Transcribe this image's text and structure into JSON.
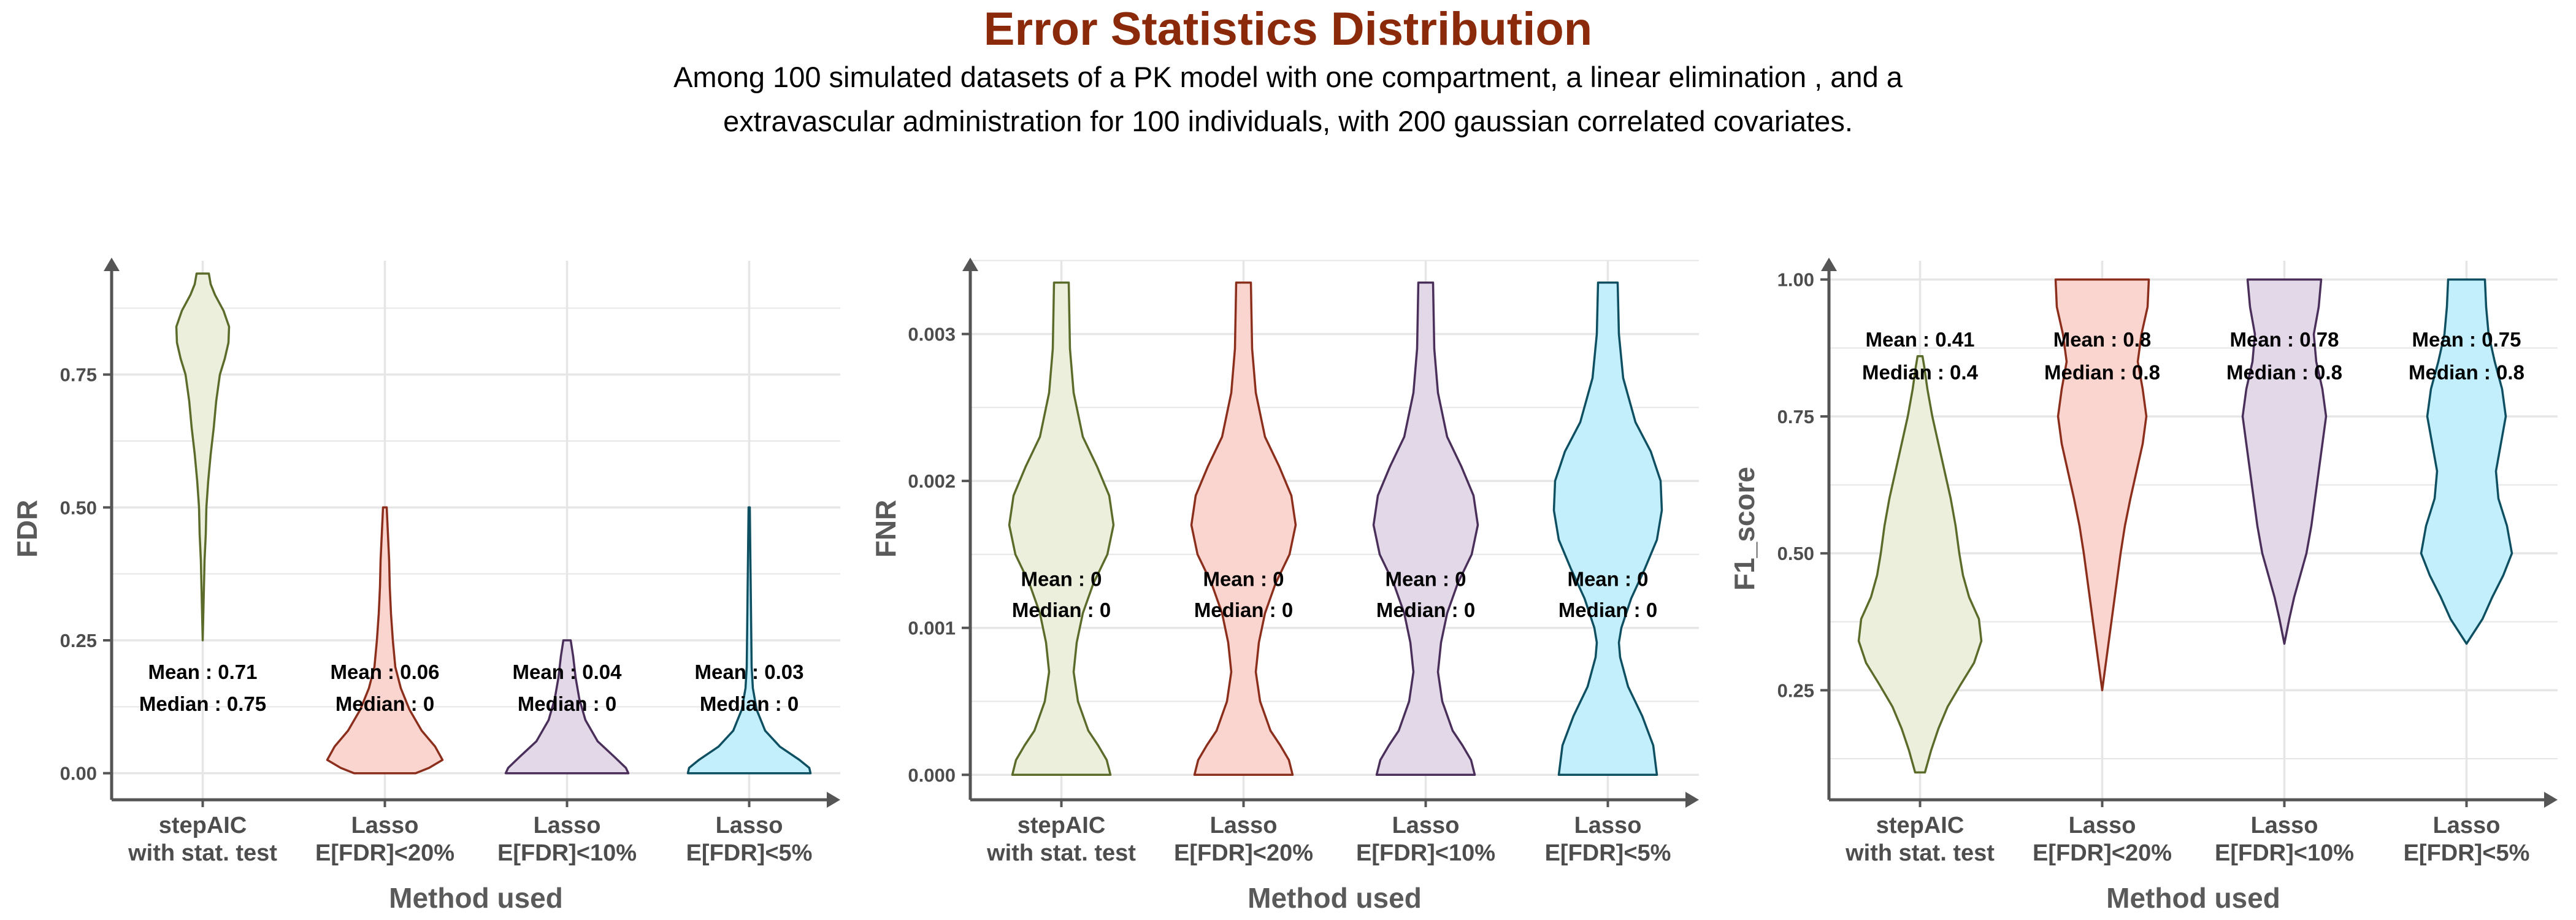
{
  "title": "Error Statistics Distribution",
  "subtitle_lines": [
    "Among 100 simulated datasets of a PK model with one compartment, a linear elimination , and a",
    "extravascular administration for 100 individuals, with 200 gaussian correlated covariates."
  ],
  "colors": {
    "title": "#8B2A0A",
    "fills": [
      "#EBEFDC",
      "#FAD4CE",
      "#E2D8E8",
      "#C2EFFB"
    ],
    "outlines": [
      "#5B6B2A",
      "#8B2E1C",
      "#4A2F5A",
      "#0E4F61"
    ],
    "grid": "#E6E6E6",
    "axis": "#555555"
  },
  "chart_data": [
    {
      "type": "violin",
      "title": "",
      "xlabel": "Method used",
      "ylabel": "FDR",
      "categories": [
        [
          "stepAIC",
          "with stat. test"
        ],
        [
          "Lasso",
          "E[FDR]<20%"
        ],
        [
          "Lasso",
          "E[FDR]<10%"
        ],
        [
          "Lasso",
          "E[FDR]<5%"
        ]
      ],
      "ylim": [
        -0.05,
        0.97
      ],
      "yticks": [
        0.0,
        0.25,
        0.5,
        0.75
      ],
      "ytick_labels": [
        "0.00",
        "0.25",
        "0.50",
        "0.75"
      ],
      "grid": true,
      "stats_y": [
        0.19,
        0.13
      ],
      "series": [
        {
          "category": "stepAIC with stat. test",
          "mean_label": "Mean : 0.71",
          "median_label": "Median : 0.75",
          "density": [
            [
              0.25,
              0.0
            ],
            [
              0.3,
              0.01
            ],
            [
              0.35,
              0.02
            ],
            [
              0.4,
              0.03
            ],
            [
              0.45,
              0.05
            ],
            [
              0.5,
              0.06
            ],
            [
              0.55,
              0.09
            ],
            [
              0.6,
              0.13
            ],
            [
              0.65,
              0.18
            ],
            [
              0.7,
              0.22
            ],
            [
              0.75,
              0.28
            ],
            [
              0.78,
              0.36
            ],
            [
              0.81,
              0.42
            ],
            [
              0.84,
              0.43
            ],
            [
              0.87,
              0.34
            ],
            [
              0.9,
              0.2
            ],
            [
              0.92,
              0.13
            ],
            [
              0.94,
              0.1
            ]
          ]
        },
        {
          "category": "Lasso E[FDR]<20%",
          "mean_label": "Mean : 0.06",
          "median_label": "Median : 0",
          "density": [
            [
              0.0,
              0.5
            ],
            [
              0.01,
              0.72
            ],
            [
              0.025,
              0.94
            ],
            [
              0.05,
              0.82
            ],
            [
              0.08,
              0.6
            ],
            [
              0.12,
              0.4
            ],
            [
              0.16,
              0.26
            ],
            [
              0.2,
              0.17
            ],
            [
              0.25,
              0.13
            ],
            [
              0.3,
              0.1
            ],
            [
              0.35,
              0.08
            ],
            [
              0.4,
              0.07
            ],
            [
              0.45,
              0.05
            ],
            [
              0.5,
              0.03
            ]
          ]
        },
        {
          "category": "Lasso E[FDR]<10%",
          "mean_label": "Mean : 0.04",
          "median_label": "Median : 0",
          "density": [
            [
              0.0,
              1.0
            ],
            [
              0.01,
              0.96
            ],
            [
              0.03,
              0.78
            ],
            [
              0.06,
              0.5
            ],
            [
              0.1,
              0.3
            ],
            [
              0.14,
              0.2
            ],
            [
              0.18,
              0.14
            ],
            [
              0.22,
              0.1
            ],
            [
              0.25,
              0.06
            ]
          ]
        },
        {
          "category": "Lasso E[FDR]<5%",
          "mean_label": "Mean : 0.03",
          "median_label": "Median : 0",
          "density": [
            [
              0.0,
              1.0
            ],
            [
              0.01,
              0.98
            ],
            [
              0.025,
              0.82
            ],
            [
              0.05,
              0.5
            ],
            [
              0.08,
              0.26
            ],
            [
              0.12,
              0.12
            ],
            [
              0.16,
              0.06
            ],
            [
              0.2,
              0.04
            ],
            [
              0.3,
              0.03
            ],
            [
              0.4,
              0.02
            ],
            [
              0.5,
              0.01
            ]
          ]
        }
      ]
    },
    {
      "type": "violin",
      "title": "",
      "xlabel": "Method used",
      "ylabel": "FNR",
      "categories": [
        [
          "stepAIC",
          "with stat. test"
        ],
        [
          "Lasso",
          "E[FDR]<20%"
        ],
        [
          "Lasso",
          "E[FDR]<10%"
        ],
        [
          "Lasso",
          "E[FDR]<5%"
        ]
      ],
      "ylim": [
        -0.00017,
        0.00352
      ],
      "yticks": [
        0.0,
        0.001,
        0.002,
        0.003
      ],
      "ytick_labels": [
        "0.000",
        "0.001",
        "0.002",
        "0.003"
      ],
      "grid": true,
      "stats_y": [
        0.00133,
        0.00112
      ],
      "series": [
        {
          "category": "stepAIC with stat. test",
          "mean_label": "Mean : 0",
          "median_label": "Median : 0",
          "density": [
            [
              0.0,
              0.8
            ],
            [
              0.0001,
              0.74
            ],
            [
              0.0002,
              0.6
            ],
            [
              0.0003,
              0.44
            ],
            [
              0.0005,
              0.27
            ],
            [
              0.0007,
              0.2
            ],
            [
              0.0009,
              0.25
            ],
            [
              0.0011,
              0.35
            ],
            [
              0.0013,
              0.52
            ],
            [
              0.0015,
              0.75
            ],
            [
              0.0017,
              0.85
            ],
            [
              0.0019,
              0.78
            ],
            [
              0.0021,
              0.58
            ],
            [
              0.0023,
              0.35
            ],
            [
              0.0026,
              0.2
            ],
            [
              0.0029,
              0.14
            ],
            [
              0.00335,
              0.12
            ]
          ]
        },
        {
          "category": "Lasso E[FDR]<20%",
          "mean_label": "Mean : 0",
          "median_label": "Median : 0",
          "density": [
            [
              0.0,
              0.8
            ],
            [
              0.0001,
              0.74
            ],
            [
              0.0002,
              0.6
            ],
            [
              0.0003,
              0.44
            ],
            [
              0.0005,
              0.27
            ],
            [
              0.0007,
              0.2
            ],
            [
              0.0009,
              0.25
            ],
            [
              0.0011,
              0.35
            ],
            [
              0.0013,
              0.52
            ],
            [
              0.0015,
              0.75
            ],
            [
              0.0017,
              0.85
            ],
            [
              0.0019,
              0.78
            ],
            [
              0.0021,
              0.58
            ],
            [
              0.0023,
              0.35
            ],
            [
              0.0026,
              0.2
            ],
            [
              0.0029,
              0.14
            ],
            [
              0.00335,
              0.12
            ]
          ]
        },
        {
          "category": "Lasso E[FDR]<10%",
          "mean_label": "Mean : 0",
          "median_label": "Median : 0",
          "density": [
            [
              0.0,
              0.8
            ],
            [
              0.0001,
              0.74
            ],
            [
              0.0002,
              0.6
            ],
            [
              0.0003,
              0.44
            ],
            [
              0.0005,
              0.27
            ],
            [
              0.0007,
              0.2
            ],
            [
              0.0009,
              0.25
            ],
            [
              0.0011,
              0.35
            ],
            [
              0.0013,
              0.52
            ],
            [
              0.0015,
              0.75
            ],
            [
              0.0017,
              0.85
            ],
            [
              0.0019,
              0.78
            ],
            [
              0.0021,
              0.58
            ],
            [
              0.0023,
              0.35
            ],
            [
              0.0026,
              0.2
            ],
            [
              0.0029,
              0.14
            ],
            [
              0.00335,
              0.12
            ]
          ]
        },
        {
          "category": "Lasso E[FDR]<5%",
          "mean_label": "Mean : 0",
          "median_label": "Median : 0",
          "density": [
            [
              0.0,
              0.8
            ],
            [
              0.0002,
              0.74
            ],
            [
              0.0004,
              0.56
            ],
            [
              0.0006,
              0.33
            ],
            [
              0.0008,
              0.2
            ],
            [
              0.0009,
              0.18
            ],
            [
              0.001,
              0.22
            ],
            [
              0.0012,
              0.38
            ],
            [
              0.0014,
              0.6
            ],
            [
              0.0016,
              0.8
            ],
            [
              0.0018,
              0.88
            ],
            [
              0.002,
              0.86
            ],
            [
              0.0022,
              0.7
            ],
            [
              0.0024,
              0.45
            ],
            [
              0.0027,
              0.25
            ],
            [
              0.003,
              0.18
            ],
            [
              0.00335,
              0.16
            ]
          ]
        }
      ]
    },
    {
      "type": "violin",
      "title": "",
      "xlabel": "Method used",
      "ylabel": "F1_score",
      "categories": [
        [
          "stepAIC",
          "with stat. test"
        ],
        [
          "Lasso",
          "E[FDR]<20%"
        ],
        [
          "Lasso",
          "E[FDR]<10%"
        ],
        [
          "Lasso",
          "E[FDR]<5%"
        ]
      ],
      "ylim": [
        0.05,
        1.04
      ],
      "yticks": [
        0.25,
        0.5,
        0.75,
        1.0
      ],
      "ytick_labels": [
        "0.25",
        "0.50",
        "0.75",
        "1.00"
      ],
      "grid": true,
      "stats_y": [
        0.89,
        0.83
      ],
      "series": [
        {
          "category": "stepAIC with stat. test",
          "mean_label": "Mean : 0.41",
          "median_label": "Median : 0.4",
          "density": [
            [
              0.1,
              0.08
            ],
            [
              0.14,
              0.18
            ],
            [
              0.18,
              0.3
            ],
            [
              0.22,
              0.45
            ],
            [
              0.26,
              0.66
            ],
            [
              0.3,
              0.88
            ],
            [
              0.34,
              1.0
            ],
            [
              0.38,
              0.96
            ],
            [
              0.42,
              0.8
            ],
            [
              0.46,
              0.7
            ],
            [
              0.5,
              0.64
            ],
            [
              0.55,
              0.58
            ],
            [
              0.6,
              0.5
            ],
            [
              0.65,
              0.4
            ],
            [
              0.7,
              0.3
            ],
            [
              0.75,
              0.2
            ],
            [
              0.8,
              0.12
            ],
            [
              0.84,
              0.07
            ],
            [
              0.86,
              0.04
            ]
          ]
        },
        {
          "category": "Lasso E[FDR]<20%",
          "mean_label": "Mean : 0.8",
          "median_label": "Median : 0.8",
          "density": [
            [
              0.25,
              0.0
            ],
            [
              0.3,
              0.06
            ],
            [
              0.35,
              0.12
            ],
            [
              0.4,
              0.18
            ],
            [
              0.45,
              0.24
            ],
            [
              0.5,
              0.3
            ],
            [
              0.55,
              0.37
            ],
            [
              0.6,
              0.46
            ],
            [
              0.65,
              0.56
            ],
            [
              0.7,
              0.66
            ],
            [
              0.75,
              0.72
            ],
            [
              0.8,
              0.66
            ],
            [
              0.85,
              0.58
            ],
            [
              0.9,
              0.64
            ],
            [
              0.95,
              0.74
            ],
            [
              1.0,
              0.76
            ]
          ]
        },
        {
          "category": "Lasso E[FDR]<10%",
          "mean_label": "Mean : 0.78",
          "median_label": "Median : 0.8",
          "density": [
            [
              0.335,
              0.0
            ],
            [
              0.38,
              0.08
            ],
            [
              0.42,
              0.16
            ],
            [
              0.46,
              0.26
            ],
            [
              0.5,
              0.36
            ],
            [
              0.55,
              0.44
            ],
            [
              0.6,
              0.5
            ],
            [
              0.65,
              0.56
            ],
            [
              0.7,
              0.62
            ],
            [
              0.75,
              0.68
            ],
            [
              0.8,
              0.62
            ],
            [
              0.85,
              0.52
            ],
            [
              0.9,
              0.48
            ],
            [
              0.95,
              0.56
            ],
            [
              1.0,
              0.6
            ]
          ]
        },
        {
          "category": "Lasso E[FDR]<5%",
          "mean_label": "Mean : 0.75",
          "median_label": "Median : 0.8",
          "density": [
            [
              0.335,
              0.0
            ],
            [
              0.38,
              0.26
            ],
            [
              0.42,
              0.42
            ],
            [
              0.46,
              0.6
            ],
            [
              0.5,
              0.74
            ],
            [
              0.55,
              0.66
            ],
            [
              0.6,
              0.52
            ],
            [
              0.65,
              0.48
            ],
            [
              0.7,
              0.56
            ],
            [
              0.75,
              0.64
            ],
            [
              0.8,
              0.58
            ],
            [
              0.85,
              0.46
            ],
            [
              0.9,
              0.36
            ],
            [
              0.95,
              0.32
            ],
            [
              1.0,
              0.3
            ]
          ]
        }
      ]
    }
  ]
}
